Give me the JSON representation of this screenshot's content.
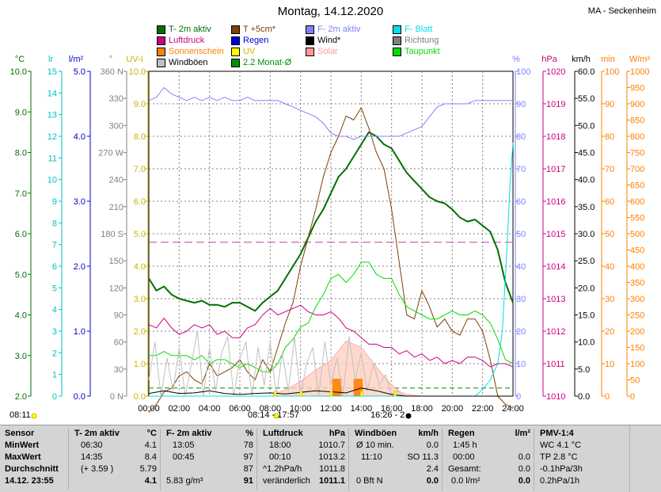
{
  "header": {
    "title": "Montag, 14.12.2020",
    "station": "MA - Seckenheim"
  },
  "legend": [
    {
      "label": "T- 2m aktiv",
      "color": "#007000"
    },
    {
      "label": "T +5cm*",
      "color": "#804000"
    },
    {
      "label": "F- 2m aktiv",
      "color": "#8080ff"
    },
    {
      "label": "F- Blatt",
      "color": "#00e0e0"
    },
    {
      "label": "Luftdruck",
      "color": "#cc0080"
    },
    {
      "label": "Regen",
      "color": "#0000dd"
    },
    {
      "label": "Wind*",
      "color": "#000000"
    },
    {
      "label": "Richtung",
      "color": "#808080"
    },
    {
      "label": "Sonnenschein",
      "color": "#ff8000"
    },
    {
      "label": "UV",
      "color": "#ffff00"
    },
    {
      "label": "Solar",
      "color": "#ff9999"
    },
    {
      "label": "Taupunkt",
      "color": "#00dd00"
    },
    {
      "label": "Windböen",
      "color": "#c0c0c0"
    },
    {
      "label": "2.2 Monat-Ø",
      "color": "#009000"
    }
  ],
  "axis_headers": [
    "°C",
    "lr",
    "l/m²",
    "°",
    "UV-I",
    "%",
    "hPa",
    "km/h",
    "min",
    "W/m²"
  ],
  "axes": {
    "temp": [
      "10.0",
      "9.0",
      "8.0",
      "7.0",
      "6.0",
      "5.0",
      "4.0",
      "3.0",
      "2.0"
    ],
    "lr": [
      "15",
      "14",
      "13",
      "12",
      "11",
      "10",
      "9",
      "8",
      "7",
      "6",
      "5",
      "4",
      "3",
      "2",
      "1",
      "0"
    ],
    "rain": [
      "5.0",
      "4.0",
      "3.0",
      "2.0",
      "1.0",
      "0.0"
    ],
    "dir": [
      "360 N",
      "330",
      "300",
      "270 W",
      "240",
      "210",
      "180 S",
      "150",
      "120",
      "90",
      "60",
      "30",
      "0 N"
    ],
    "uv": [
      "10.0",
      "9.0",
      "8.0",
      "7.0",
      "6.0",
      "5.0",
      "4.0",
      "3.0",
      "2.0",
      "1.0",
      "0.0"
    ],
    "hum": [
      "100",
      "90",
      "80",
      "70",
      "60",
      "50",
      "40",
      "30",
      "20",
      "10",
      "0"
    ],
    "press": [
      "1020",
      "1019",
      "1018",
      "1017",
      "1016",
      "1015",
      "1014",
      "1013",
      "1012",
      "1011",
      "1010"
    ],
    "wind": [
      "60.0",
      "55.0",
      "50.0",
      "45.0",
      "40.0",
      "35.0",
      "30.0",
      "25.0",
      "20.0",
      "15.0",
      "10.0",
      "5.0",
      "0.0"
    ],
    "sunmin": [
      "100",
      "90",
      "80",
      "70",
      "60",
      "50",
      "40",
      "30",
      "20",
      "10",
      "0"
    ],
    "solar": [
      "1000",
      "950",
      "900",
      "850",
      "800",
      "750",
      "700",
      "650",
      "600",
      "550",
      "500",
      "450",
      "400",
      "350",
      "300",
      "250",
      "200",
      "150",
      "100",
      "50",
      "0"
    ]
  },
  "bottom_markers": {
    "left": "08:11",
    "center": "08:14 - 17:57",
    "right": "16:26 - 2"
  },
  "chart_data": {
    "type": "line",
    "title": "Montag, 14.12.2020",
    "x_ticks": [
      "00:00",
      "02:00",
      "04:00",
      "06:00",
      "08:00",
      "10:00",
      "12:00",
      "14:00",
      "16:00",
      "18:00",
      "20:00",
      "22:00",
      "24:00"
    ],
    "xlim": [
      0,
      24
    ],
    "grid": true,
    "reference_lines": [
      {
        "name": "2.2 Monat-Ø",
        "axis": "temp",
        "value": 2.2
      },
      {
        "name": "T- 2m aktiv Ø",
        "axis": "temp",
        "value": 5.79
      }
    ],
    "series": [
      {
        "name": "T- 2m aktiv",
        "axis": "temp",
        "color": "#007000",
        "width": 2,
        "x": [
          0,
          0.5,
          1,
          1.5,
          2,
          2.5,
          3,
          3.5,
          4,
          4.5,
          5,
          5.5,
          6,
          6.5,
          7,
          7.5,
          8,
          8.5,
          9,
          9.5,
          10,
          10.5,
          11,
          11.5,
          12,
          12.5,
          13,
          13.5,
          14,
          14.5,
          15,
          15.5,
          16,
          16.5,
          17,
          17.5,
          18,
          18.5,
          19,
          19.5,
          20,
          20.5,
          21,
          21.5,
          22,
          22.5,
          23,
          23.5,
          24
        ],
        "y": [
          4.9,
          4.6,
          4.7,
          4.5,
          4.4,
          4.35,
          4.3,
          4.35,
          4.25,
          4.25,
          4.2,
          4.3,
          4.3,
          4.2,
          4.1,
          4.3,
          4.45,
          4.6,
          4.9,
          5.2,
          5.5,
          5.9,
          6.3,
          6.6,
          7.0,
          7.4,
          7.6,
          7.9,
          8.2,
          8.5,
          8.4,
          8.2,
          8.1,
          7.8,
          7.5,
          7.3,
          7.1,
          6.9,
          6.8,
          6.75,
          6.6,
          6.4,
          6.3,
          6.35,
          6.2,
          6.05,
          5.6,
          4.8,
          4.3
        ]
      },
      {
        "name": "T +5cm*",
        "axis": "temp",
        "color": "#804000",
        "width": 1,
        "x": [
          0,
          0.5,
          1,
          1.5,
          2,
          2.5,
          3,
          3.5,
          4,
          4.5,
          5,
          5.5,
          6,
          6.5,
          7,
          7.5,
          8,
          8.5,
          9,
          9.5,
          10,
          10.5,
          11,
          11.5,
          12,
          12.5,
          13,
          13.5,
          14,
          14.5,
          15,
          15.5,
          16,
          16.5,
          17,
          17.5,
          18,
          18.5,
          19,
          19.5,
          20,
          20.5,
          21,
          21.5,
          22,
          22.5,
          23,
          23.5,
          24
        ],
        "y": [
          1.6,
          1.8,
          2.1,
          2.2,
          2.5,
          2.6,
          2.4,
          2.3,
          2.8,
          2.5,
          2.6,
          2.7,
          2.9,
          2.6,
          2.4,
          2.9,
          2.6,
          3.2,
          3.8,
          4.3,
          5.2,
          5.9,
          6.6,
          7.4,
          8.0,
          8.4,
          8.9,
          8.8,
          9.1,
          8.6,
          8.0,
          7.6,
          6.6,
          5.3,
          4.0,
          3.9,
          4.6,
          4.2,
          3.7,
          3.9,
          3.6,
          3.5,
          3.9,
          3.9,
          3.6,
          2.9,
          2.0,
          1.8,
          1.7
        ]
      },
      {
        "name": "F- 2m aktiv",
        "axis": "hum",
        "color": "#8080ff",
        "width": 1,
        "x": [
          0,
          0.5,
          1,
          1.5,
          2,
          2.5,
          3,
          3.5,
          4,
          4.5,
          5,
          5.5,
          6,
          6.5,
          7,
          7.5,
          8,
          8.5,
          9,
          9.5,
          10,
          10.5,
          11,
          11.5,
          12,
          12.5,
          13,
          13.5,
          14,
          14.5,
          15,
          15.5,
          16,
          16.5,
          17,
          17.5,
          18,
          18.5,
          19,
          19.5,
          20,
          20.5,
          21,
          21.5,
          22,
          22.5,
          23,
          23.5,
          24
        ],
        "y": [
          91,
          92,
          95,
          93,
          92,
          91,
          92,
          91,
          92,
          91,
          92,
          91,
          91,
          92,
          91,
          91,
          91,
          91,
          90,
          89,
          88,
          87,
          86,
          84,
          81,
          80,
          80,
          79,
          80,
          80,
          80,
          80,
          80,
          80,
          81,
          82,
          83,
          86,
          89,
          90,
          90,
          90,
          90,
          91,
          91,
          91,
          91,
          91,
          91
        ]
      },
      {
        "name": "F- Blatt",
        "axis": "hum",
        "color": "#00e0e0",
        "width": 1,
        "x": [
          0,
          2,
          4,
          6,
          8,
          10,
          12,
          14,
          16,
          18,
          20,
          21.5,
          22,
          22.5,
          23,
          23.3,
          23.6,
          23.8,
          24
        ],
        "y": [
          0,
          0,
          0,
          0,
          0,
          0,
          0,
          0,
          0,
          0,
          0,
          0,
          2,
          5,
          10,
          20,
          45,
          65,
          78
        ]
      },
      {
        "name": "Luftdruck",
        "axis": "press",
        "color": "#cc0080",
        "width": 1,
        "x": [
          0,
          0.5,
          1,
          1.5,
          2,
          2.5,
          3,
          3.5,
          4,
          4.5,
          5,
          5.5,
          6,
          6.5,
          7,
          7.5,
          8,
          8.5,
          9,
          9.5,
          10,
          10.5,
          11,
          11.5,
          12,
          12.5,
          13,
          13.5,
          14,
          14.5,
          15,
          15.5,
          16,
          16.5,
          17,
          17.5,
          18,
          18.5,
          19,
          19.5,
          20,
          20.5,
          21,
          21.5,
          22,
          22.5,
          23,
          23.5,
          24
        ],
        "y": [
          1012.2,
          1012.1,
          1012.4,
          1012.1,
          1011.9,
          1012.0,
          1012.2,
          1012.1,
          1012.2,
          1011.9,
          1012.0,
          1011.8,
          1011.8,
          1012.1,
          1012.2,
          1012.5,
          1012.7,
          1012.5,
          1012.6,
          1012.7,
          1012.8,
          1012.6,
          1012.5,
          1012.5,
          1012.6,
          1012.4,
          1012.1,
          1012.0,
          1011.8,
          1011.6,
          1011.6,
          1011.5,
          1011.5,
          1011.3,
          1011.4,
          1011.2,
          1011.3,
          1011.1,
          1011.2,
          1011.0,
          1011.1,
          1011.0,
          1011.2,
          1011.2,
          1011.1,
          1010.9,
          1011.0,
          1011.0,
          1010.9
        ]
      },
      {
        "name": "Taupunkt",
        "axis": "temp",
        "color": "#00dd00",
        "width": 1,
        "x": [
          0,
          0.5,
          1,
          1.5,
          2,
          2.5,
          3,
          3.5,
          4,
          4.5,
          5,
          5.5,
          6,
          6.5,
          7,
          7.5,
          8,
          8.5,
          9,
          9.5,
          10,
          10.5,
          11,
          11.5,
          12,
          12.5,
          13,
          13.5,
          14,
          14.5,
          15,
          15.5,
          16,
          16.5,
          17,
          17.5,
          18,
          18.5,
          19,
          19.5,
          20,
          20.5,
          21,
          21.5,
          22,
          22.5,
          23,
          23.5,
          24
        ],
        "y": [
          3.0,
          3.0,
          3.1,
          3.0,
          3.0,
          3.0,
          2.9,
          3.0,
          2.8,
          2.9,
          2.9,
          2.8,
          2.7,
          2.8,
          2.7,
          2.6,
          2.6,
          2.8,
          3.2,
          3.4,
          3.7,
          3.8,
          4.2,
          4.5,
          4.9,
          5.0,
          4.8,
          5.0,
          5.3,
          5.3,
          5.0,
          4.9,
          4.9,
          4.5,
          4.2,
          4.1,
          4.0,
          3.9,
          3.9,
          4.0,
          4.1,
          4.0,
          4.0,
          4.1,
          4.0,
          3.8,
          3.4,
          2.9,
          2.8
        ]
      },
      {
        "name": "Windböen",
        "axis": "wind",
        "color": "#c0c0c0",
        "width": 1,
        "x": [
          0,
          0.4,
          0.8,
          1.2,
          1.6,
          2.0,
          2.4,
          2.8,
          3.2,
          3.6,
          4.0,
          4.4,
          4.8,
          5.2,
          5.6,
          6.0,
          6.4,
          6.8,
          7.2,
          7.6,
          8.0,
          8.4,
          8.8,
          9.2,
          9.6,
          10.0,
          10.4,
          10.8,
          11.2,
          11.6,
          12.0,
          12.4,
          12.8,
          13.2,
          13.6,
          14.0,
          14.4,
          14.8,
          15.2,
          15.6,
          16.0,
          16.4,
          16.8,
          17.2,
          17.6,
          18.0,
          18.4,
          18.8,
          19.2,
          19.6,
          20.0,
          20.4,
          20.8,
          21.2,
          21.6,
          22.0,
          22.4,
          22.8,
          23.2,
          23.6,
          24.0
        ],
        "y": [
          3,
          10,
          0,
          7,
          1,
          9,
          0,
          6,
          12,
          0,
          9,
          1,
          8,
          11,
          0,
          7,
          10,
          0,
          9,
          2,
          10,
          0,
          8,
          1,
          11,
          0,
          6,
          9,
          0,
          10,
          2,
          7,
          0,
          11,
          3,
          8,
          1,
          6,
          2,
          4,
          0,
          1,
          0,
          0,
          0,
          0,
          0,
          0,
          0,
          0,
          0,
          0,
          0,
          0,
          0,
          0,
          0,
          0,
          0,
          0,
          0
        ]
      },
      {
        "name": "Solar",
        "axis": "solar",
        "color": "#ff9999",
        "width": 1,
        "x": [
          8.2,
          9,
          10,
          11,
          11.5,
          12,
          12.5,
          13,
          13.5,
          14,
          14.5,
          15,
          15.5,
          16,
          16.5,
          17,
          18
        ],
        "y": [
          5,
          20,
          45,
          80,
          95,
          110,
          140,
          170,
          160,
          150,
          120,
          90,
          60,
          35,
          15,
          5,
          0
        ]
      },
      {
        "name": "Sonnenschein",
        "axis": "sunmin",
        "color": "#ff8000",
        "width": 3,
        "x": [
          12.2,
          12.4,
          12.6,
          13.6,
          13.8,
          14.0
        ],
        "y": [
          0,
          3,
          0,
          0,
          4,
          0
        ]
      },
      {
        "name": "Wind*",
        "axis": "wind",
        "color": "#000000",
        "width": 1,
        "x": [
          0,
          1,
          2,
          3,
          4,
          5,
          6,
          7,
          8,
          9,
          10,
          11,
          12,
          13,
          14,
          15,
          16,
          17,
          18,
          19,
          20,
          21,
          22,
          23,
          24
        ],
        "y": [
          0.5,
          1,
          0.5,
          0.6,
          1,
          0.5,
          0.3,
          0.5,
          0.6,
          0.4,
          0.7,
          1,
          0.8,
          0.6,
          1.5,
          1,
          0.3,
          0,
          0,
          0,
          0,
          0,
          0,
          0,
          0
        ]
      }
    ]
  },
  "stats": {
    "sensor": {
      "header": "Sensor",
      "r1": "MinWert",
      "r2": "MaxWert",
      "r3": "Durchschnitt",
      "r4": "14.12. 23:55"
    },
    "t2m": {
      "header": "T- 2m aktiv",
      "unit": "°C",
      "r1a": "06:30",
      "r1b": "4.1",
      "r2a": "14:35",
      "r2b": "8.4",
      "r3a": "(+ 3.59 )",
      "r3b": "5.79",
      "r4b": "4.1"
    },
    "f2m": {
      "header": "F- 2m aktiv",
      "unit": "%",
      "r1a": "13:05",
      "r1b": "78",
      "r2a": "00:45",
      "r2b": "97",
      "r3b": "87",
      "r4a": "5.83 g/m³",
      "r4b": "91"
    },
    "press": {
      "header": "Luftdruck",
      "unit": "hPa",
      "r1a": "18:00",
      "r1b": "1010.7",
      "r2a": "00:10",
      "r2b": "1013.2",
      "r3a": "^1.2hPa/h",
      "r3b": "1011.8",
      "r4a": "veränderlich",
      "r4b": "1011.1"
    },
    "wind": {
      "header": "Windböen",
      "unit": "km/h",
      "r1a": "Ø 10 min.",
      "r1b": "0.0",
      "r2a": "11:10",
      "r2b": "SO 11.3",
      "r3b": "2.4",
      "r4a": "0 Bft N",
      "r4b": "0.0"
    },
    "rain": {
      "header": "Regen",
      "unit": "l/m²",
      "r1a": "1:45 h",
      "r2a": "00:00",
      "r2b": "0.0",
      "r3a": "Gesamt:",
      "r3b": "0.0",
      "r4a": "0.0 l/m²",
      "r4b": "0.0"
    },
    "pmv": {
      "header": "PMV-1:4",
      "r1": "WC 4.1 °C",
      "r2": "TP 2.8 °C",
      "r3": "-0.1hPa/3h",
      "r4": "0.2hPa/1h"
    }
  }
}
